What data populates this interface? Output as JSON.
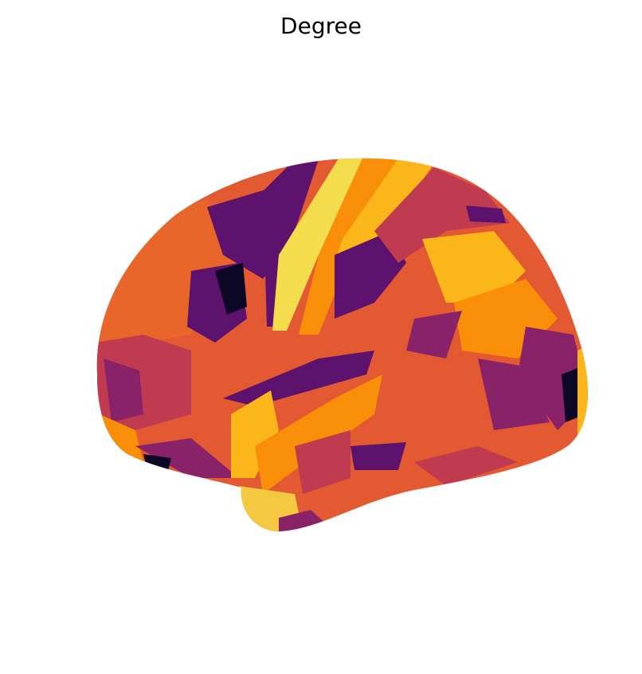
{
  "title": "Degree"
}
